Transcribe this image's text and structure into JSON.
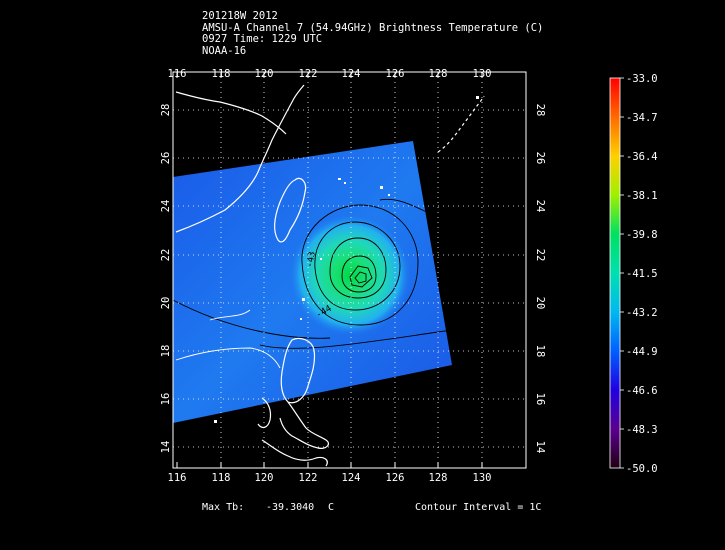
{
  "header": {
    "line1": "201218W 2012",
    "line2": "AMSU-A Channel 7 (54.94GHz) Brightness Temperature (C)",
    "line3": "0927 Time: 1229 UTC",
    "line4": "NOAA-16"
  },
  "map": {
    "lon_ticks": [
      "116",
      "118",
      "120",
      "122",
      "124",
      "126",
      "128",
      "130"
    ],
    "lat_ticks": [
      "14",
      "16",
      "18",
      "20",
      "22",
      "24",
      "26",
      "28"
    ],
    "lon_range": [
      116,
      132
    ],
    "lat_range": [
      13,
      29.5
    ],
    "contour_labels": [
      "-43",
      "-44"
    ],
    "storm_center": {
      "lon": 124.4,
      "lat": 21.1
    },
    "colors": {
      "swath": "#1e66f0",
      "grid": "#ffffff",
      "coast": "#ffffff",
      "contour": "#000000"
    }
  },
  "colorbar": {
    "ticks": [
      "-33.0",
      "-34.7",
      "-36.4",
      "-38.1",
      "-39.8",
      "-41.5",
      "-43.2",
      "-44.9",
      "-46.6",
      "-48.3",
      "-50.0"
    ],
    "max": -33.0,
    "min": -50.0
  },
  "footer": {
    "max_tb_label": "Max Tb:",
    "max_tb_value": "-39.3040",
    "max_tb_unit": "C",
    "contour_interval": "Contour Interval = 1C"
  }
}
